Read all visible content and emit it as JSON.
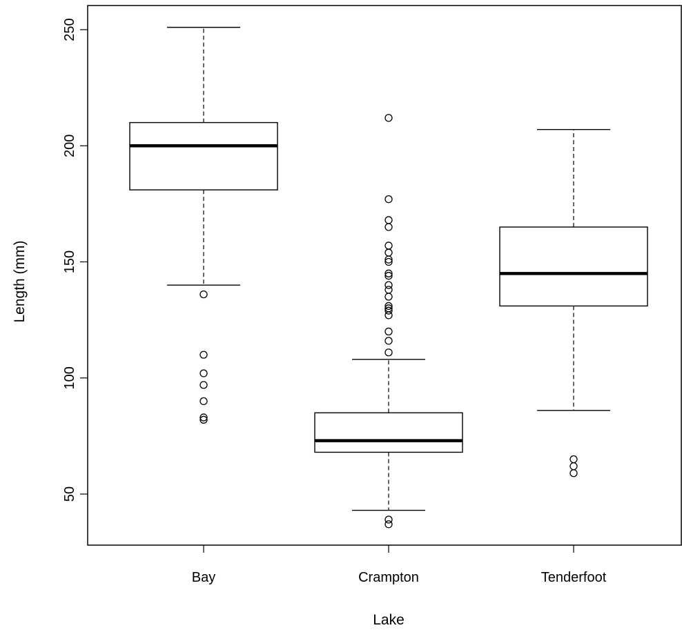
{
  "chart_data": {
    "type": "boxplot",
    "title": "",
    "xlabel": "Lake",
    "ylabel": "Length (mm)",
    "categories": [
      "Bay",
      "Crampton",
      "Tenderfoot"
    ],
    "yticks": [
      50,
      100,
      150,
      200,
      250
    ],
    "ylim": [
      28,
      260
    ],
    "grid": false,
    "legend": "none",
    "boxes": [
      {
        "category": "Bay",
        "whisker_low": 140,
        "q1": 181,
        "median": 200,
        "q3": 210,
        "whisker_high": 251,
        "outliers": [
          136,
          110,
          102,
          97,
          90,
          83,
          82
        ]
      },
      {
        "category": "Crampton",
        "whisker_low": 43,
        "q1": 68,
        "median": 73,
        "q3": 85,
        "whisker_high": 108,
        "outliers": [
          212,
          177,
          168,
          165,
          157,
          154,
          151,
          150,
          145,
          144,
          140,
          138,
          135,
          131,
          130,
          129,
          127,
          120,
          116,
          111,
          39,
          37
        ]
      },
      {
        "category": "Tenderfoot",
        "whisker_low": 86,
        "q1": 131,
        "median": 145,
        "q3": 165,
        "whisker_high": 207,
        "outliers": [
          65,
          62,
          59
        ]
      }
    ],
    "colors": {
      "stroke": "#000000",
      "box_fill": "#ffffff"
    }
  }
}
